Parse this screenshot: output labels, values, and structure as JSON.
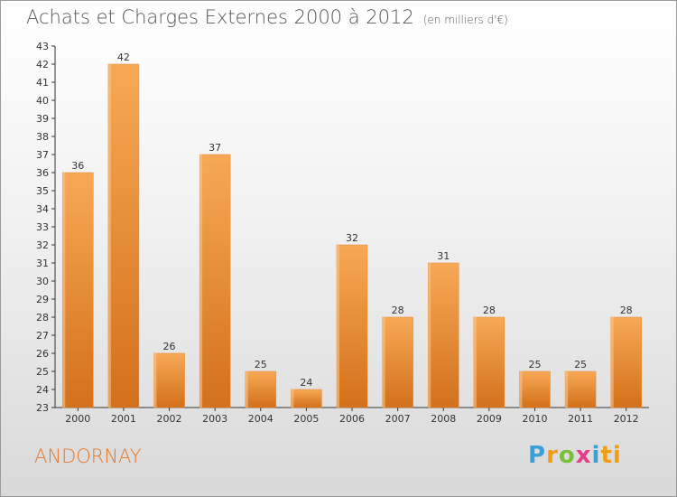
{
  "chart_data": {
    "type": "bar",
    "title": "Achats et Charges Externes 2000 à 2012",
    "subtitle": "(en milliers d'€)",
    "categories": [
      "2000",
      "2001",
      "2002",
      "2003",
      "2004",
      "2005",
      "2006",
      "2007",
      "2008",
      "2009",
      "2010",
      "2011",
      "2012"
    ],
    "values": [
      36,
      42,
      26,
      37,
      25,
      24,
      32,
      28,
      31,
      28,
      25,
      25,
      28
    ],
    "ylim": [
      23,
      43
    ],
    "yticks": [
      23,
      24,
      25,
      26,
      27,
      28,
      29,
      30,
      31,
      32,
      33,
      34,
      35,
      36,
      37,
      38,
      39,
      40,
      41,
      42,
      43
    ],
    "grid": false,
    "legend": "none",
    "bar_color": "#f39a44"
  },
  "place_name": "ANDORNAY",
  "logo": {
    "text": "Proxiti",
    "letters": [
      "P",
      "r",
      "o",
      "x",
      "i",
      "ti"
    ]
  }
}
